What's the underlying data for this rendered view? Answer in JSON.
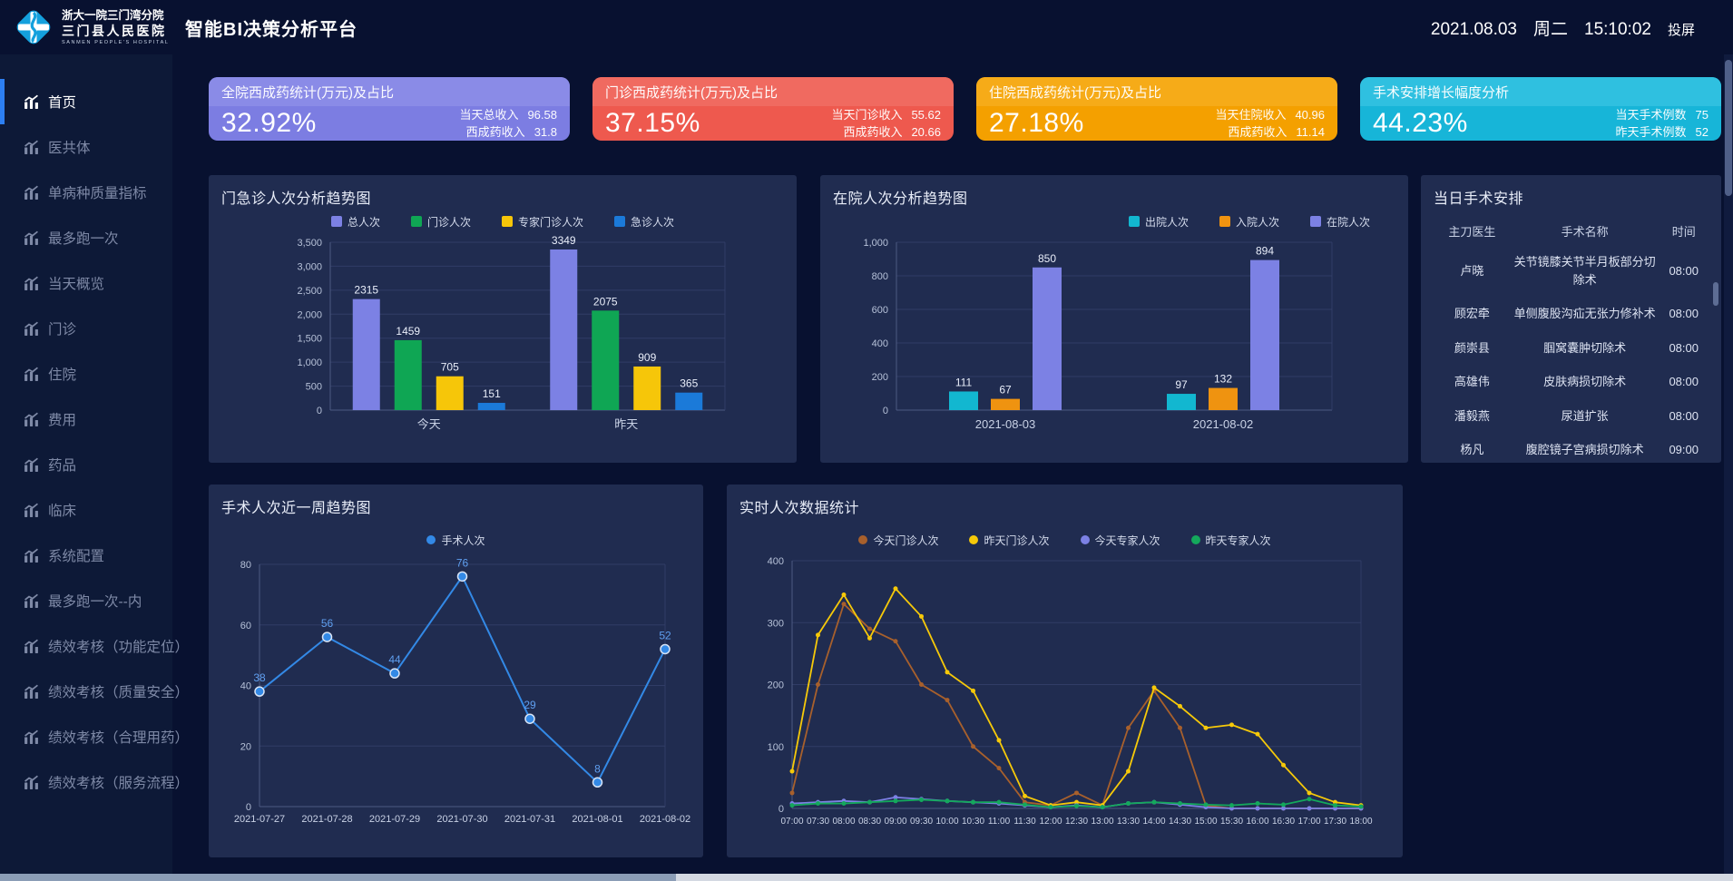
{
  "header": {
    "logo": {
      "line1": "浙大一院三门湾分院",
      "line2": "三门县人民医院",
      "line_en": "SANMEN PEOPLE'S HOSPITAL"
    },
    "app_title": "智能BI决策分析平台",
    "date": "2021.08.03",
    "weekday": "周二",
    "time": "15:10:02",
    "cast_button": "投屏"
  },
  "sidebar": {
    "items": [
      {
        "label": "首页",
        "active": true
      },
      {
        "label": "医共体"
      },
      {
        "label": "单病种质量指标"
      },
      {
        "label": "最多跑一次"
      },
      {
        "label": "当天概览"
      },
      {
        "label": "门诊"
      },
      {
        "label": "住院"
      },
      {
        "label": "费用"
      },
      {
        "label": "药品"
      },
      {
        "label": "临床"
      },
      {
        "label": "系统配置"
      },
      {
        "label": "最多跑一次--内"
      },
      {
        "label": "绩效考核（功能定位）"
      },
      {
        "label": "绩效考核（质量安全）"
      },
      {
        "label": "绩效考核（合理用药）"
      },
      {
        "label": "绩效考核（服务流程）"
      }
    ]
  },
  "kpi_cards": [
    {
      "title": "全院西成药统计(万元)及占比",
      "value": "32.92%",
      "color": "#7c7de2",
      "title_color": "#8a8be7",
      "metrics": [
        {
          "label": "当天总收入",
          "value": "96.58"
        },
        {
          "label": "西成药收入",
          "value": "31.8"
        }
      ]
    },
    {
      "title": "门诊西成药统计(万元)及占比",
      "value": "37.15%",
      "color": "#ee594e",
      "title_color": "#f06a60",
      "metrics": [
        {
          "label": "当天门诊收入",
          "value": "55.62"
        },
        {
          "label": "西成药收入",
          "value": "20.66"
        }
      ]
    },
    {
      "title": "住院西成药统计(万元)及占比",
      "value": "27.18%",
      "color": "#f4a000",
      "title_color": "#f6ab18",
      "metrics": [
        {
          "label": "当天住院收入",
          "value": "40.96"
        },
        {
          "label": "西成药收入",
          "value": "11.14"
        }
      ]
    },
    {
      "title": "手术安排增长幅度分析",
      "value": "44.23%",
      "color": "#17b5d8",
      "title_color": "#2fc0e0",
      "metrics": [
        {
          "label": "当天手术例数",
          "value": "75"
        },
        {
          "label": "昨天手术例数",
          "value": "52"
        }
      ]
    }
  ],
  "surgery_table": {
    "title": "当日手术安排",
    "columns": [
      "主刀医生",
      "手术名称",
      "时间"
    ],
    "rows": [
      [
        "卢晓",
        "关节镜膝关节半月板部分切除术",
        "08:00"
      ],
      [
        "顾宏牵",
        "单侧腹股沟疝无张力修补术",
        "08:00"
      ],
      [
        "颜崇县",
        "腘窝囊肿切除术",
        "08:00"
      ],
      [
        "高雄伟",
        "皮肤病损切除术",
        "08:00"
      ],
      [
        "潘毅燕",
        "尿道扩张",
        "08:00"
      ],
      [
        "杨凡",
        "腹腔镜子宫病损切除术",
        "09:00"
      ]
    ]
  },
  "chart_data": [
    {
      "type": "bar",
      "title": "门急诊人次分析趋势图",
      "categories": [
        "今天",
        "昨天"
      ],
      "series": [
        {
          "name": "总人次",
          "color": "#7c81e4",
          "values": [
            2315,
            3349
          ]
        },
        {
          "name": "门诊人次",
          "color": "#0fa654",
          "values": [
            1459,
            2075
          ]
        },
        {
          "name": "专家门诊人次",
          "color": "#f6c609",
          "values": [
            705,
            909
          ]
        },
        {
          "name": "急诊人次",
          "color": "#1b7ad9",
          "values": [
            151,
            365
          ]
        }
      ],
      "ylim": [
        0,
        3500
      ],
      "ystep": 500,
      "grid": true,
      "legend_position": "center"
    },
    {
      "type": "bar",
      "title": "在院人次分析趋势图",
      "categories": [
        "2021-08-03",
        "2021-08-02"
      ],
      "series": [
        {
          "name": "出院人次",
          "color": "#12b7d0",
          "values": [
            111,
            97
          ]
        },
        {
          "name": "入院人次",
          "color": "#ef9310",
          "values": [
            67,
            132
          ]
        },
        {
          "name": "在院人次",
          "color": "#7c81e4",
          "values": [
            850,
            894
          ]
        }
      ],
      "ylim": [
        0,
        1000
      ],
      "ystep": 200,
      "grid": true,
      "legend_position": "right"
    },
    {
      "type": "line",
      "title": "手术人次近一周趋势图",
      "x": [
        "2021-07-27",
        "2021-07-28",
        "2021-07-29",
        "2021-07-30",
        "2021-07-31",
        "2021-08-01",
        "2021-08-02"
      ],
      "series": [
        {
          "name": "手术人次",
          "color": "#3389e6",
          "values": [
            38,
            56,
            44,
            76,
            29,
            8,
            52
          ],
          "show_labels": true,
          "ring_points": true
        }
      ],
      "ylim": [
        0,
        80
      ],
      "ystep": 20,
      "grid": true,
      "legend_position": "center"
    },
    {
      "type": "line",
      "title": "实时人次数据统计",
      "x": [
        "07:00",
        "07:30",
        "08:00",
        "08:30",
        "09:00",
        "09:30",
        "10:00",
        "10:30",
        "11:00",
        "11:30",
        "12:00",
        "12:30",
        "13:00",
        "13:30",
        "14:00",
        "14:30",
        "15:00",
        "15:30",
        "16:00",
        "16:30",
        "17:00",
        "17:30",
        "18:00"
      ],
      "series": [
        {
          "name": "今天门诊人次",
          "color": "#a8602c",
          "values": [
            25,
            200,
            330,
            290,
            270,
            200,
            175,
            100,
            65,
            10,
            5,
            25,
            5,
            130,
            190,
            130,
            5,
            0,
            0,
            0,
            0,
            0,
            0
          ]
        },
        {
          "name": "昨天门诊人次",
          "color": "#f6c909",
          "values": [
            60,
            280,
            345,
            275,
            355,
            310,
            220,
            190,
            110,
            20,
            5,
            10,
            5,
            60,
            195,
            165,
            130,
            135,
            120,
            70,
            25,
            10,
            5
          ]
        },
        {
          "name": "今天专家人次",
          "color": "#7c81e4",
          "values": [
            8,
            10,
            12,
            10,
            18,
            15,
            12,
            10,
            8,
            5,
            2,
            5,
            2,
            8,
            10,
            6,
            2,
            0,
            0,
            0,
            0,
            0,
            0
          ]
        },
        {
          "name": "昨天专家人次",
          "color": "#14a85c",
          "values": [
            5,
            8,
            8,
            10,
            12,
            14,
            12,
            10,
            10,
            6,
            2,
            4,
            2,
            8,
            10,
            8,
            6,
            5,
            8,
            6,
            15,
            5,
            3
          ]
        }
      ],
      "ylim": [
        0,
        400
      ],
      "ystep": 100,
      "grid": true,
      "legend_position": "center"
    }
  ]
}
